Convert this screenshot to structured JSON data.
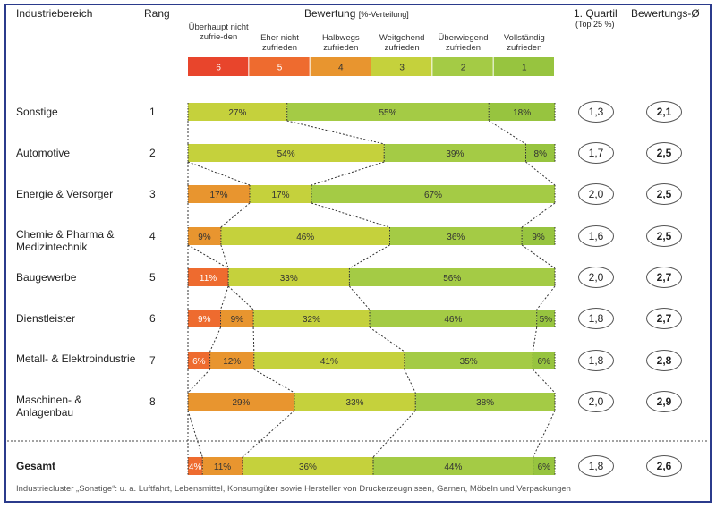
{
  "headers": {
    "industry": "Industriebereich",
    "rank": "Rang",
    "rating": "Bewertung",
    "rating_sub": "[%-Verteilung]",
    "quartile": "1. Quartil",
    "quartile_sub": "(Top 25 %)",
    "average": "Bewertungs-Ø"
  },
  "chart_data": {
    "type": "bar",
    "stacked": true,
    "orientation": "horizontal",
    "legend": [
      {
        "grade": "6",
        "label": "Überhaupt nicht zufrie-den",
        "color": "#e8452c"
      },
      {
        "grade": "5",
        "label": "Eher nicht zufrieden",
        "color": "#ee6b2f"
      },
      {
        "grade": "4",
        "label": "Halbwegs zufrieden",
        "color": "#e8952f"
      },
      {
        "grade": "3",
        "label": "Weitgehend zufrieden",
        "color": "#c5d13c"
      },
      {
        "grade": "2",
        "label": "Überwiegend zufrieden",
        "color": "#a4cb45"
      },
      {
        "grade": "1",
        "label": "Vollständig zufrieden",
        "color": "#97c43f"
      }
    ],
    "rows": [
      {
        "name": "Sonstige",
        "rank": "1",
        "values": [
          0,
          0,
          0,
          27,
          55,
          18
        ],
        "quartile": "1,3",
        "average": "2,1"
      },
      {
        "name": "Automotive",
        "rank": "2",
        "values": [
          0,
          0,
          0,
          54,
          39,
          8
        ],
        "quartile": "1,7",
        "average": "2,5"
      },
      {
        "name": "Energie & Versorger",
        "rank": "3",
        "values": [
          0,
          0,
          17,
          17,
          67,
          0
        ],
        "quartile": "2,0",
        "average": "2,5"
      },
      {
        "name": "Chemie & Pharma & Medizintechnik",
        "rank": "4",
        "values": [
          0,
          0,
          9,
          46,
          36,
          9
        ],
        "quartile": "1,6",
        "average": "2,5"
      },
      {
        "name": "Baugewerbe",
        "rank": "5",
        "values": [
          0,
          11,
          0,
          33,
          56,
          0
        ],
        "quartile": "2,0",
        "average": "2,7"
      },
      {
        "name": "Dienstleister",
        "rank": "6",
        "values": [
          0,
          9,
          9,
          32,
          46,
          5
        ],
        "quartile": "1,8",
        "average": "2,7"
      },
      {
        "name": "Metall- & Elektroindustrie",
        "rank": "7",
        "values": [
          0,
          6,
          12,
          41,
          35,
          6
        ],
        "quartile": "1,8",
        "average": "2,8"
      },
      {
        "name": "Maschinen- & Anlagenbau",
        "rank": "8",
        "values": [
          0,
          0,
          29,
          33,
          38,
          0
        ],
        "quartile": "2,0",
        "average": "2,9"
      },
      {
        "name": "Gesamt",
        "rank": "",
        "values": [
          0,
          4,
          11,
          36,
          44,
          6
        ],
        "quartile": "1,8",
        "average": "2,6",
        "total": true
      }
    ]
  },
  "footnote": "Industriecluster „Sonstige“: u. a. Luftfahrt, Lebensmittel, Konsumgüter sowie Hersteller von Druckerzeugnissen, Garnen, Möbeln und Verpackungen"
}
